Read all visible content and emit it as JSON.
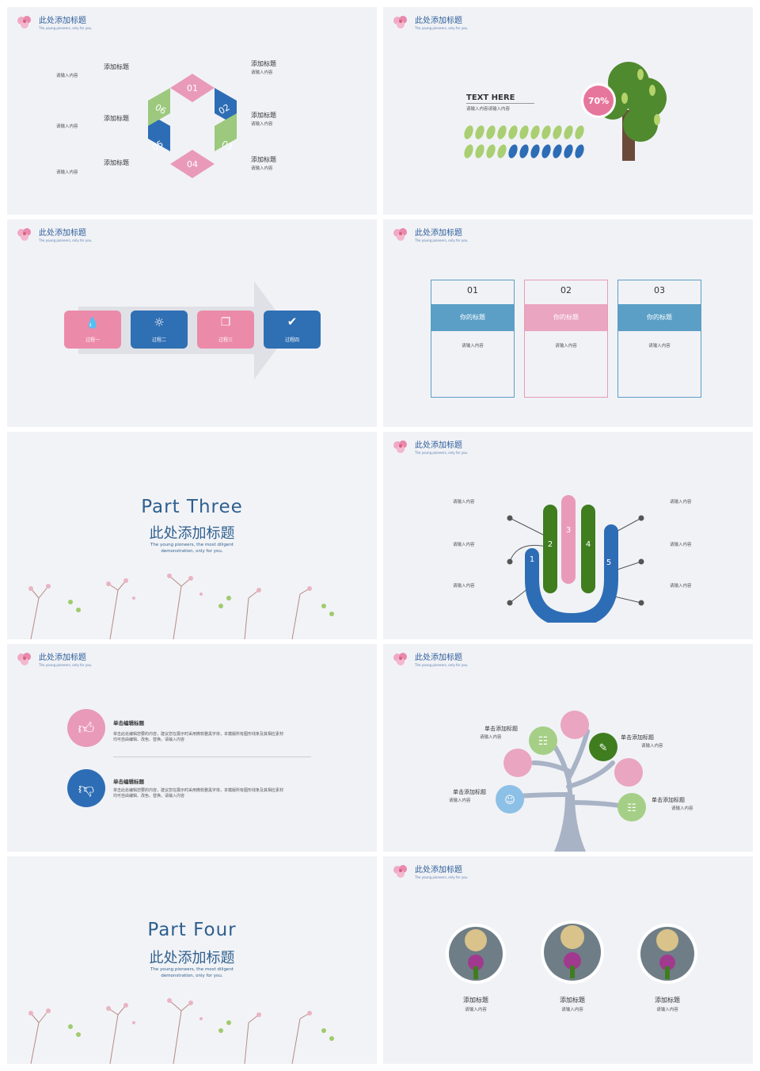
{
  "header": {
    "title": "此处添加标题",
    "subtitle": "The young pioneers, only for you."
  },
  "slide1": {
    "left": [
      {
        "title": "添加标题",
        "desc": "请输入内容"
      },
      {
        "title": "添加标题",
        "desc": "请输入内容"
      },
      {
        "title": "添加标题",
        "desc": "请输入内容"
      }
    ],
    "right": [
      {
        "title": "添加标题",
        "desc": "请输入内容"
      },
      {
        "title": "添加标题",
        "desc": "请输入内容"
      },
      {
        "title": "添加标题",
        "desc": "请输入内容"
      }
    ],
    "numbers": [
      "01",
      "02",
      "03",
      "04",
      "05",
      "06"
    ]
  },
  "slide2": {
    "heading": "TEXT HERE",
    "desc": "请输入内容请输入内容",
    "percent": "70%"
  },
  "slide3": {
    "steps": [
      "过程一",
      "过程二",
      "过程三",
      "过程四"
    ]
  },
  "slide4": {
    "cards": [
      {
        "num": "01",
        "title": "你的标题",
        "desc": "请输入内容"
      },
      {
        "num": "02",
        "title": "你的标题",
        "desc": "请输入内容"
      },
      {
        "num": "03",
        "title": "你的标题",
        "desc": "请输入内容"
      }
    ]
  },
  "slide5": {
    "part": "Part  Three",
    "title": "此处添加标题",
    "desc1": "The young pioneers, the most diligent",
    "desc2": "demonstration, only for you."
  },
  "slide6": {
    "left": [
      "请输入内容",
      "请输入内容",
      "请输入内容"
    ],
    "right": [
      "请输入内容",
      "请输入内容",
      "请输入内容"
    ],
    "fingers": [
      "1",
      "2",
      "3",
      "4",
      "5"
    ]
  },
  "slide7": {
    "items": [
      {
        "title": "单击编辑标题",
        "line1": "单击此处编辑您要的内容，建议您在展示时采用微软雅黑字体，本模版所有图形线条及其相应素材",
        "line2": "均可自由编辑、改色、替换。请输入内容"
      },
      {
        "title": "单击编辑标题",
        "line1": "单击此处编辑您要的内容，建议您在展示时采用微软雅黑字体，本模版所有图形线条及其相应素材",
        "line2": "均可自由编辑、改色、替换。请输入内容"
      }
    ]
  },
  "slide8": {
    "labels": [
      {
        "title": "单击添加标题",
        "desc": "请输入内容"
      },
      {
        "title": "单击添加标题",
        "desc": "请输入内容"
      },
      {
        "title": "单击添加标题",
        "desc": "请输入内容"
      },
      {
        "title": "单击添加标题",
        "desc": "请输入内容"
      }
    ]
  },
  "slide9": {
    "part": "Part  Four",
    "title": "此处添加标题",
    "desc1": "The young pioneers, the most diligent",
    "desc2": "demonstration, only for you."
  },
  "slide10": {
    "items": [
      {
        "title": "添加标题",
        "desc": "请输入内容"
      },
      {
        "title": "添加标题",
        "desc": "请输入内容"
      },
      {
        "title": "添加标题",
        "desc": "请输入内容"
      }
    ]
  },
  "colors": {
    "pink": "#e99ab9",
    "blue": "#2d6db5",
    "green": "#9cc97d",
    "darkgreen": "#3f7d1f",
    "teal": "#5b9fc6",
    "bg": "#f1f2f6"
  }
}
